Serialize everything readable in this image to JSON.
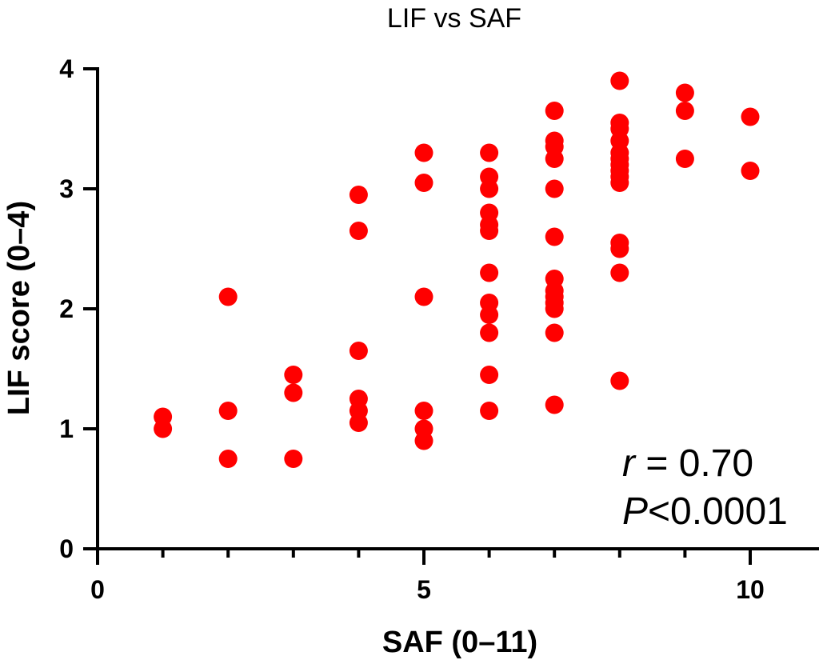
{
  "chart_data": {
    "type": "scatter",
    "title": "LIF vs SAF",
    "xlabel": "SAF (0–11)",
    "ylabel": "LIF score (0–4)",
    "xlim": [
      0,
      11
    ],
    "ylim": [
      0,
      4
    ],
    "x_ticks": [
      "0",
      "5",
      "10"
    ],
    "y_ticks": [
      "0",
      "1",
      "2",
      "3",
      "4"
    ],
    "grid": false,
    "marker_color": "#ff0000",
    "points": [
      [
        1,
        1.1
      ],
      [
        1,
        1.0
      ],
      [
        2,
        2.1
      ],
      [
        2,
        1.15
      ],
      [
        2,
        0.75
      ],
      [
        3,
        1.45
      ],
      [
        3,
        1.3
      ],
      [
        3,
        0.75
      ],
      [
        4,
        2.95
      ],
      [
        4,
        2.65
      ],
      [
        4,
        1.65
      ],
      [
        4,
        1.25
      ],
      [
        4,
        1.15
      ],
      [
        4,
        1.05
      ],
      [
        5,
        3.3
      ],
      [
        5,
        3.05
      ],
      [
        5,
        2.1
      ],
      [
        5,
        1.15
      ],
      [
        5,
        1.0
      ],
      [
        5,
        0.9
      ],
      [
        6,
        3.3
      ],
      [
        6,
        3.1
      ],
      [
        6,
        3.0
      ],
      [
        6,
        2.8
      ],
      [
        6,
        2.7
      ],
      [
        6,
        2.65
      ],
      [
        6,
        2.3
      ],
      [
        6,
        2.05
      ],
      [
        6,
        1.95
      ],
      [
        6,
        1.8
      ],
      [
        6,
        1.45
      ],
      [
        6,
        1.15
      ],
      [
        7,
        3.65
      ],
      [
        7,
        3.4
      ],
      [
        7,
        3.35
      ],
      [
        7,
        3.25
      ],
      [
        7,
        3.0
      ],
      [
        7,
        2.6
      ],
      [
        7,
        2.25
      ],
      [
        7,
        2.15
      ],
      [
        7,
        2.1
      ],
      [
        7,
        2.05
      ],
      [
        7,
        2.0
      ],
      [
        7,
        1.8
      ],
      [
        7,
        1.2
      ],
      [
        8,
        3.9
      ],
      [
        8,
        3.55
      ],
      [
        8,
        3.5
      ],
      [
        8,
        3.4
      ],
      [
        8,
        3.3
      ],
      [
        8,
        3.25
      ],
      [
        8,
        3.2
      ],
      [
        8,
        3.15
      ],
      [
        8,
        3.1
      ],
      [
        8,
        3.05
      ],
      [
        8,
        2.55
      ],
      [
        8,
        2.5
      ],
      [
        8,
        2.3
      ],
      [
        8,
        1.4
      ],
      [
        9,
        3.8
      ],
      [
        9,
        3.65
      ],
      [
        9,
        3.25
      ],
      [
        10,
        3.6
      ],
      [
        10,
        3.15
      ]
    ],
    "annotations": {
      "r_symbol": "r",
      "r_value": " = 0.70",
      "p_symbol": "P",
      "p_value": "<0.0001"
    }
  }
}
